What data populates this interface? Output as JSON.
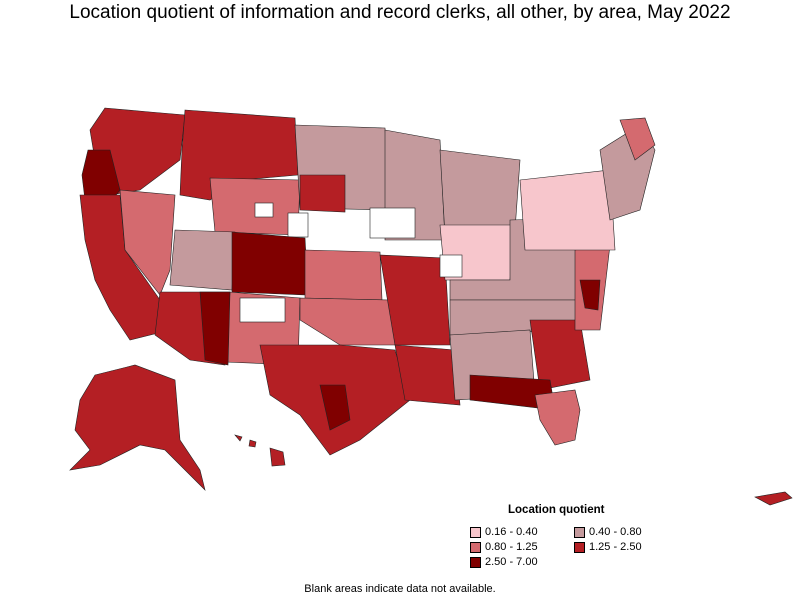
{
  "title": "Location quotient of information and record clerks, all other, by area, May 2022",
  "legend": {
    "title": "Location quotient",
    "items": [
      {
        "label": "0.16 - 0.40",
        "color": "#f7c6cc"
      },
      {
        "label": "0.40 - 0.80",
        "color": "#c49a9d"
      },
      {
        "label": "0.80 - 1.25",
        "color": "#d46a6f"
      },
      {
        "label": "1.25 - 2.50",
        "color": "#b41f24"
      },
      {
        "label": "2.50 - 7.00",
        "color": "#800000"
      }
    ]
  },
  "footnote": "Blank areas indicate data not available."
}
